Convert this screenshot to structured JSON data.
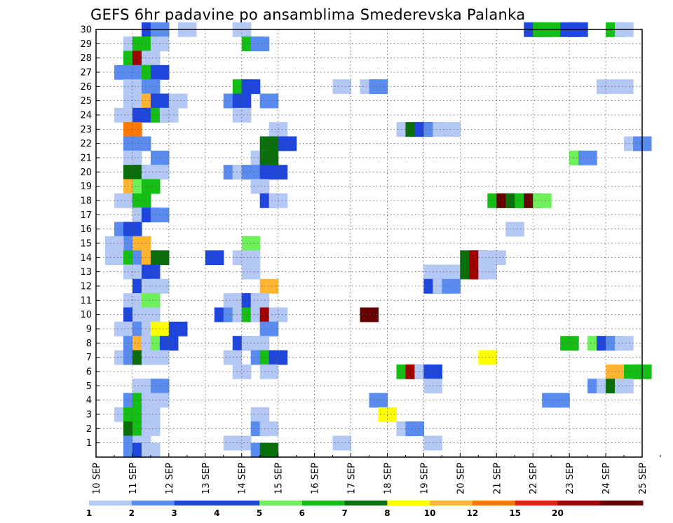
{
  "chart_data": {
    "type": "heatmap",
    "title": "GEFS 6hr padavine po ansamblima Smederevska Palanka",
    "xlabel": "",
    "ylabel": "",
    "x_start": "10 SEP",
    "x_end": "25 SEP",
    "x_step_hours": 6,
    "x_ticks": [
      "10 SEP",
      "11 SEP",
      "12 SEP",
      "13 SEP",
      "14 SEP",
      "15 SEP",
      "16 SEP",
      "17 SEP",
      "18 SEP",
      "19 SEP",
      "20 SEP",
      "21 SEP",
      "22 SEP",
      "23 SEP",
      "24 SEP",
      "25 SEP"
    ],
    "y_ticks": [
      "1",
      "2",
      "3",
      "4",
      "5",
      "6",
      "7",
      "8",
      "9",
      "10",
      "11",
      "12",
      "13",
      "14",
      "15",
      "16",
      "17",
      "18",
      "19",
      "20",
      "21",
      "22",
      "23",
      "24",
      "25",
      "26",
      "27",
      "28",
      "29",
      "30"
    ],
    "ylim": [
      0,
      30
    ],
    "grid": true,
    "legend": {
      "position": "bottom",
      "levels": [
        "1",
        "2",
        "3",
        "4",
        "5",
        "6",
        "7",
        "8",
        "10",
        "12",
        "15",
        "20"
      ],
      "colors": [
        "#b4c8f5",
        "#5a8cf0",
        "#1e46dc",
        "#1e46dc",
        "#6ef05a",
        "#14be14",
        "#0a6e0a",
        "#ffff00",
        "#ffb432",
        "#ff7800",
        "#e61e14",
        "#a00000",
        "#640000"
      ]
    },
    "cells": [
      {
        "member": 30,
        "x": [
          3.5,
          4
        ],
        "c": [
          3,
          2
        ]
      },
      {
        "member": 30,
        "x": [
          5.5
        ],
        "c": [
          1
        ]
      },
      {
        "member": 30,
        "x": [
          8.5
        ],
        "c": [
          1
        ]
      },
      {
        "member": 30,
        "x": [
          24.5,
          25,
          25.5
        ],
        "c": [
          3,
          6,
          6
        ]
      },
      {
        "member": 30,
        "x": [
          26.5,
          27
        ],
        "c": [
          3,
          3
        ]
      },
      {
        "member": 30,
        "x": [
          29
        ],
        "c": [
          6
        ]
      },
      {
        "member": 30,
        "x": [
          29.5
        ],
        "c": [
          1
        ]
      },
      {
        "member": 29,
        "x": [
          2.5,
          3,
          3.5,
          4
        ],
        "c": [
          1,
          6,
          6,
          1
        ]
      },
      {
        "member": 29,
        "x": [
          9,
          9.5
        ],
        "c": [
          6,
          2
        ]
      },
      {
        "member": 28,
        "x": [
          2.5,
          3
        ],
        "c": [
          6,
          12
        ]
      },
      {
        "member": 28,
        "x": [
          3.5
        ],
        "c": [
          1
        ]
      },
      {
        "member": 27,
        "x": [
          2,
          2.5,
          3,
          3.5,
          4
        ],
        "c": [
          2,
          2,
          2,
          6,
          3
        ]
      },
      {
        "member": 26,
        "x": [
          2.5
        ],
        "c": [
          1
        ]
      },
      {
        "member": 26,
        "x": [
          3.5
        ],
        "c": [
          2
        ]
      },
      {
        "member": 26,
        "x": [
          8.5,
          9
        ],
        "c": [
          6,
          3
        ]
      },
      {
        "member": 26,
        "x": [
          14
        ],
        "c": [
          1
        ]
      },
      {
        "member": 26,
        "x": [
          15.5,
          16
        ],
        "c": [
          1,
          2
        ]
      },
      {
        "member": 26,
        "x": [
          28.5
        ],
        "c": [
          1
        ]
      },
      {
        "member": 26,
        "x": [
          29.5
        ],
        "c": [
          1
        ]
      },
      {
        "member": 25,
        "x": [
          2.5,
          3,
          3.5,
          4
        ],
        "c": [
          1,
          1,
          9,
          3
        ]
      },
      {
        "member": 25,
        "x": [
          5
        ],
        "c": [
          1
        ]
      },
      {
        "member": 25,
        "x": [
          8,
          8.5
        ],
        "c": [
          2,
          3
        ]
      },
      {
        "member": 25,
        "x": [
          10
        ],
        "c": [
          2
        ]
      },
      {
        "member": 24,
        "x": [
          2
        ],
        "c": [
          1
        ]
      },
      {
        "member": 24,
        "x": [
          3
        ],
        "c": [
          3
        ]
      },
      {
        "member": 24,
        "x": [
          4,
          4.5
        ],
        "c": [
          6,
          1
        ]
      },
      {
        "member": 24,
        "x": [
          8.5
        ],
        "c": [
          1
        ]
      },
      {
        "member": 23,
        "x": [
          2.5
        ],
        "c": [
          10
        ]
      },
      {
        "member": 23,
        "x": [
          10.5
        ],
        "c": [
          1
        ]
      },
      {
        "member": 23,
        "x": [
          17.5,
          18,
          18.5,
          19,
          19.5,
          20
        ],
        "c": [
          1,
          7,
          3,
          2,
          1,
          1
        ]
      },
      {
        "member": 22,
        "x": [
          2.5,
          3
        ],
        "c": [
          2,
          2
        ]
      },
      {
        "member": 22,
        "x": [
          10,
          10.5,
          11
        ],
        "c": [
          7,
          7,
          3
        ]
      },
      {
        "member": 22,
        "x": [
          30
        ],
        "c": [
          1
        ]
      },
      {
        "member": 22,
        "x": [
          30.5
        ],
        "c": [
          2
        ]
      },
      {
        "member": 21,
        "x": [
          2.5
        ],
        "c": [
          1
        ]
      },
      {
        "member": 21,
        "x": [
          4
        ],
        "c": [
          2
        ]
      },
      {
        "member": 21,
        "x": [
          9.5,
          10
        ],
        "c": [
          1,
          7
        ]
      },
      {
        "member": 21,
        "x": [
          27
        ],
        "c": [
          5
        ]
      },
      {
        "member": 21,
        "x": [
          27.5
        ],
        "c": [
          2
        ]
      },
      {
        "member": 20,
        "x": [
          2.5,
          3,
          3.5
        ],
        "c": [
          7,
          7,
          1
        ]
      },
      {
        "member": 20,
        "x": [
          4
        ],
        "c": [
          1
        ]
      },
      {
        "member": 20,
        "x": [
          8,
          8.5,
          9
        ],
        "c": [
          2,
          1,
          2
        ]
      },
      {
        "member": 20,
        "x": [
          10,
          10.5
        ],
        "c": [
          3,
          3
        ]
      },
      {
        "member": 19,
        "x": [
          2.5,
          3,
          3.5
        ],
        "c": [
          9,
          5,
          6
        ]
      },
      {
        "member": 19,
        "x": [
          9.5
        ],
        "c": [
          1
        ]
      },
      {
        "member": 18,
        "x": [
          2,
          2.5
        ],
        "c": [
          1,
          1
        ]
      },
      {
        "member": 18,
        "x": [
          3
        ],
        "c": [
          6
        ]
      },
      {
        "member": 18,
        "x": [
          10,
          10.5
        ],
        "c": [
          3,
          1
        ]
      },
      {
        "member": 18,
        "x": [
          22.5,
          23,
          23.5,
          24,
          24.5,
          25
        ],
        "c": [
          6,
          13,
          7,
          6,
          13,
          5
        ]
      },
      {
        "member": 17,
        "x": [
          3
        ],
        "c": [
          1
        ]
      },
      {
        "member": 17,
        "x": [
          3.5,
          4
        ],
        "c": [
          3,
          2
        ]
      },
      {
        "member": 16,
        "x": [
          23.5
        ],
        "c": [
          1
        ]
      },
      {
        "member": 16,
        "x": [
          2,
          2.5
        ],
        "c": [
          2,
          3
        ]
      },
      {
        "member": 15,
        "x": [
          2.5
        ],
        "c": [
          2
        ]
      },
      {
        "member": 15,
        "x": [
          3
        ],
        "c": [
          9
        ]
      },
      {
        "member": 15,
        "x": [
          9
        ],
        "c": [
          5
        ]
      },
      {
        "member": 15,
        "x": [
          1.5
        ],
        "c": [
          1
        ]
      },
      {
        "member": 14,
        "x": [
          1.5
        ],
        "c": [
          1
        ]
      },
      {
        "member": 14,
        "x": [
          2.5,
          3,
          3.5,
          4
        ],
        "c": [
          6,
          2,
          9,
          7
        ]
      },
      {
        "member": 14,
        "x": [
          7
        ],
        "c": [
          3
        ]
      },
      {
        "member": 14,
        "x": [
          8.5,
          9
        ],
        "c": [
          1,
          1
        ]
      },
      {
        "member": 14,
        "x": [
          21,
          21.5,
          22,
          22.5
        ],
        "c": [
          7,
          12,
          1,
          1
        ]
      },
      {
        "member": 13,
        "x": [
          2.5,
          3
        ],
        "c": [
          1,
          1
        ]
      },
      {
        "member": 13,
        "x": [
          3.5
        ],
        "c": [
          3
        ]
      },
      {
        "member": 13,
        "x": [
          9
        ],
        "c": [
          1
        ]
      },
      {
        "member": 13,
        "x": [
          19
        ],
        "c": [
          1
        ]
      },
      {
        "member": 13,
        "x": [
          20
        ],
        "c": [
          1
        ]
      },
      {
        "member": 13,
        "x": [
          21,
          21.5,
          22
        ],
        "c": [
          7,
          12,
          1
        ]
      },
      {
        "member": 12,
        "x": [
          3
        ],
        "c": [
          3
        ]
      },
      {
        "member": 12,
        "x": [
          3.5,
          4
        ],
        "c": [
          1,
          1
        ]
      },
      {
        "member": 12,
        "x": [
          10
        ],
        "c": [
          9
        ]
      },
      {
        "member": 12,
        "x": [
          19,
          19.5,
          20
        ],
        "c": [
          3,
          1,
          2
        ]
      },
      {
        "member": 11,
        "x": [
          2.5,
          3
        ],
        "c": [
          1,
          1
        ]
      },
      {
        "member": 11,
        "x": [
          3.5
        ],
        "c": [
          5
        ]
      },
      {
        "member": 11,
        "x": [
          8,
          8.5,
          9
        ],
        "c": [
          1,
          1,
          3
        ]
      },
      {
        "member": 11,
        "x": [
          9.5
        ],
        "c": [
          1
        ]
      },
      {
        "member": 10,
        "x": [
          2.5
        ],
        "c": [
          3
        ]
      },
      {
        "member": 10,
        "x": [
          3,
          3.5
        ],
        "c": [
          1,
          1
        ]
      },
      {
        "member": 10,
        "x": [
          7.5,
          8,
          8.5
        ],
        "c": [
          3,
          2,
          1
        ]
      },
      {
        "member": 10,
        "x": [
          9,
          9.5,
          10,
          10.5
        ],
        "c": [
          6,
          1,
          12,
          1
        ]
      },
      {
        "member": 10,
        "x": [
          15.5
        ],
        "c": [
          13
        ]
      },
      {
        "member": 9,
        "x": [
          2,
          2.5,
          3,
          3.5,
          4
        ],
        "c": [
          1,
          1,
          2,
          1,
          8
        ]
      },
      {
        "member": 9,
        "x": [
          5
        ],
        "c": [
          3
        ]
      },
      {
        "member": 9,
        "x": [
          10
        ],
        "c": [
          2
        ]
      },
      {
        "member": 8,
        "x": [
          2.5
        ],
        "c": [
          2
        ]
      },
      {
        "member": 8,
        "x": [
          3,
          3.5,
          4,
          4.5
        ],
        "c": [
          9,
          1,
          5,
          3
        ]
      },
      {
        "member": 8,
        "x": [
          8.5
        ],
        "c": [
          3
        ]
      },
      {
        "member": 8,
        "x": [
          9,
          9.5
        ],
        "c": [
          1,
          1
        ]
      },
      {
        "member": 8,
        "x": [
          26.5
        ],
        "c": [
          6
        ]
      },
      {
        "member": 8,
        "x": [
          28,
          28.5,
          29,
          29.5
        ],
        "c": [
          5,
          3,
          2,
          1
        ]
      },
      {
        "member": 7,
        "x": [
          2,
          2.5,
          3,
          3.5,
          4
        ],
        "c": [
          1,
          2,
          7,
          1,
          1
        ]
      },
      {
        "member": 7,
        "x": [
          8
        ],
        "c": [
          1
        ]
      },
      {
        "member": 7,
        "x": [
          9.5,
          10,
          10.5
        ],
        "c": [
          2,
          6,
          3
        ]
      },
      {
        "member": 7,
        "x": [
          22
        ],
        "c": [
          8
        ]
      },
      {
        "member": 6,
        "x": [
          8.5
        ],
        "c": [
          1
        ]
      },
      {
        "member": 6,
        "x": [
          10
        ],
        "c": [
          1
        ]
      },
      {
        "member": 6,
        "x": [
          17.5,
          18,
          18.5,
          19
        ],
        "c": [
          6,
          12,
          1,
          3
        ]
      },
      {
        "member": 6,
        "x": [
          29
        ],
        "c": [
          9
        ]
      },
      {
        "member": 6,
        "x": [
          30,
          30.5
        ],
        "c": [
          6,
          6
        ]
      },
      {
        "member": 5,
        "x": [
          3,
          3.5,
          4
        ],
        "c": [
          1,
          1,
          2
        ]
      },
      {
        "member": 5,
        "x": [
          19
        ],
        "c": [
          1
        ]
      },
      {
        "member": 5,
        "x": [
          28
        ],
        "c": [
          2
        ]
      },
      {
        "member": 5,
        "x": [
          28.5,
          29,
          29.5
        ],
        "c": [
          1,
          7,
          9
        ]
      },
      {
        "member": 5,
        "x": [
          29.5
        ],
        "c": [
          1
        ]
      },
      {
        "member": 4,
        "x": [
          2.5,
          3,
          3.5,
          4
        ],
        "c": [
          2,
          6,
          1,
          1
        ]
      },
      {
        "member": 4,
        "x": [
          16
        ],
        "c": [
          2
        ]
      },
      {
        "member": 4,
        "x": [
          25.5,
          26
        ],
        "c": [
          2,
          2
        ]
      },
      {
        "member": 3,
        "x": [
          2,
          2.5,
          3
        ],
        "c": [
          1,
          6,
          6
        ]
      },
      {
        "member": 3,
        "x": [
          3.5
        ],
        "c": [
          1
        ]
      },
      {
        "member": 3,
        "x": [
          9.5
        ],
        "c": [
          1
        ]
      },
      {
        "member": 3,
        "x": [
          16.5
        ],
        "c": [
          8
        ]
      },
      {
        "member": 2,
        "x": [
          2.5,
          3,
          3.5
        ],
        "c": [
          7,
          6,
          1
        ]
      },
      {
        "member": 2,
        "x": [
          9.5,
          10
        ],
        "c": [
          2,
          1
        ]
      },
      {
        "member": 2,
        "x": [
          17.5,
          18
        ],
        "c": [
          1,
          2
        ]
      },
      {
        "member": 1,
        "x": [
          2.5,
          3
        ],
        "c": [
          2,
          1
        ]
      },
      {
        "member": 1,
        "x": [
          8,
          8.5
        ],
        "c": [
          1,
          1
        ]
      },
      {
        "member": 1,
        "x": [
          14
        ],
        "c": [
          1
        ]
      },
      {
        "member": 1,
        "x": [
          19
        ],
        "c": [
          1
        ]
      },
      {
        "member": 0.5,
        "x": [
          2.5,
          3
        ],
        "c": [
          2,
          3
        ]
      },
      {
        "member": 0.5,
        "x": [
          3.5
        ],
        "c": [
          1
        ]
      },
      {
        "member": 0.5,
        "x": [
          9.5,
          10
        ],
        "c": [
          2,
          7
        ]
      }
    ]
  }
}
